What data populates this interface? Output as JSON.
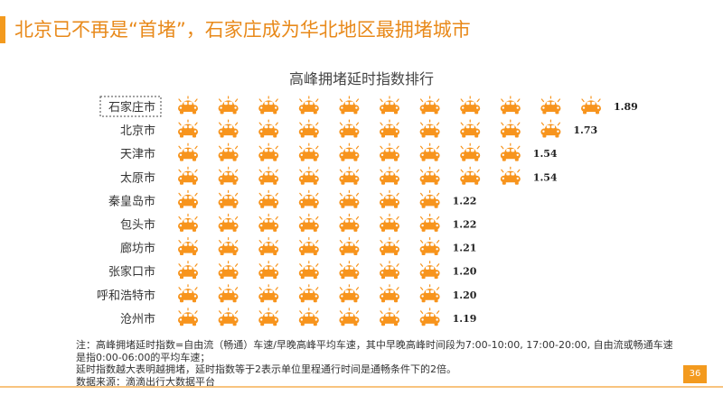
{
  "page_title": "北京已不再是“首堵”，石家庄成为华北地区最拥堵城市",
  "page_number": "36",
  "colors": {
    "accent": "#f39a1e",
    "car": "#f7941d",
    "text": "#333333"
  },
  "notes": [
    "注：高峰拥堵延时指数=自由流（畅通）车速/早晚高峰平均车速，其中早晚高峰时间段为7:00-10:00, 17:00-20:00, 自由流或畅通车速",
    "是指0:00-06:00的平均车速；",
    "延时指数越大表明越拥堵，延时指数等于2表示单位里程通行时间是通畅条件下的2倍。",
    "数据来源：滴滴出行大数据平台"
  ],
  "chart_data": {
    "type": "pictograph-bar",
    "title": "高峰拥堵延时指数排行",
    "icon": "car-icon",
    "highlighted_category": "石家庄市",
    "categories": [
      "石家庄市",
      "北京市",
      "天津市",
      "太原市",
      "秦皇岛市",
      "包头市",
      "廊坊市",
      "张家口市",
      "呼和浩特市",
      "沧州市"
    ],
    "values": [
      1.89,
      1.73,
      1.54,
      1.54,
      1.22,
      1.22,
      1.21,
      1.2,
      1.2,
      1.19
    ],
    "value_labels": [
      "1.89",
      "1.73",
      "1.54",
      "1.54",
      "1.22",
      "1.22",
      "1.21",
      "1.20",
      "1.20",
      "1.19"
    ],
    "icon_counts": [
      11,
      10,
      9,
      9,
      7,
      7,
      7,
      7,
      7,
      7
    ]
  }
}
